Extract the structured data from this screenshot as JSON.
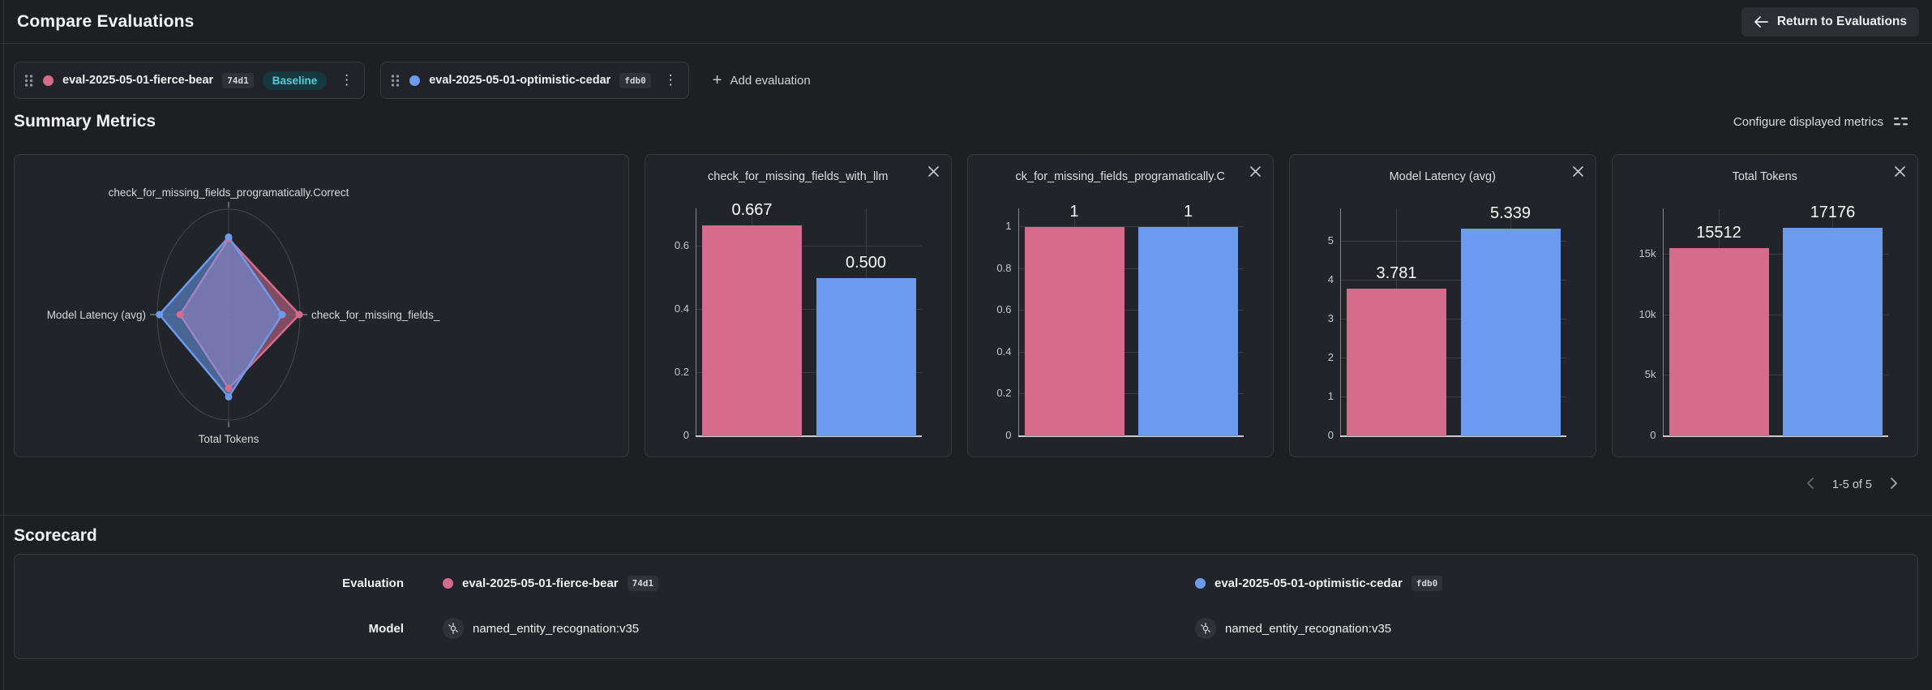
{
  "header": {
    "title": "Compare Evaluations",
    "return_label": "Return to Evaluations"
  },
  "evaluations": [
    {
      "name": "eval-2025-05-01-fierce-bear",
      "hash": "74d1",
      "color": "#d66b8e",
      "baseline_label": "Baseline"
    },
    {
      "name": "eval-2025-05-01-optimistic-cedar",
      "hash": "fdb0",
      "color": "#6c9bee"
    }
  ],
  "toolbar": {
    "add_evaluation_label": "Add evaluation"
  },
  "summary": {
    "heading": "Summary Metrics",
    "configure_label": "Configure displayed metrics",
    "pagination_label": "1-5 of 5"
  },
  "scorecard": {
    "heading": "Scorecard",
    "evaluation_row_label": "Evaluation",
    "model_row_label": "Model",
    "model_values": [
      "named_entity_recognation:v35",
      "named_entity_recognation:v35"
    ]
  },
  "chart_data": [
    {
      "type": "radar",
      "axes": [
        {
          "label": "check_for_missing_fields_programatically.Correct",
          "position": "top"
        },
        {
          "label": "check_for_missing_fields_",
          "position": "right"
        },
        {
          "label": "Total Tokens",
          "position": "bottom"
        },
        {
          "label": "Model Latency (avg)",
          "position": "left"
        }
      ],
      "series": [
        {
          "name": "eval-2025-05-01-fierce-bear",
          "color": "#d66b8e",
          "fractions": [
            0.72,
            0.99,
            0.7,
            0.68
          ]
        },
        {
          "name": "eval-2025-05-01-optimistic-cedar",
          "color": "#6c9bee",
          "fractions": [
            0.735,
            0.75,
            0.78,
            0.97
          ]
        }
      ]
    },
    {
      "type": "bar",
      "title": "check_for_missing_fields_with_llm",
      "ylim": [
        0,
        0.72
      ],
      "ticks": [
        {
          "label": "0",
          "value": 0
        },
        {
          "label": "0.2",
          "value": 0.2
        },
        {
          "label": "0.4",
          "value": 0.4
        },
        {
          "label": "0.6",
          "value": 0.6
        }
      ],
      "bars": [
        {
          "series": "eval-2025-05-01-fierce-bear",
          "value": 0.667,
          "label": "0.667",
          "color": "#d66b8e"
        },
        {
          "series": "eval-2025-05-01-optimistic-cedar",
          "value": 0.5,
          "label": "0.500",
          "color": "#6c9bee"
        }
      ]
    },
    {
      "type": "bar",
      "title": "ck_for_missing_fields_programatically.C",
      "ylim": [
        0,
        1.09
      ],
      "ticks": [
        {
          "label": "0",
          "value": 0
        },
        {
          "label": "0.2",
          "value": 0.2
        },
        {
          "label": "0.4",
          "value": 0.4
        },
        {
          "label": "0.6",
          "value": 0.6
        },
        {
          "label": "0.8",
          "value": 0.8
        },
        {
          "label": "1",
          "value": 1
        }
      ],
      "bars": [
        {
          "series": "eval-2025-05-01-fierce-bear",
          "value": 1,
          "label": "1",
          "color": "#d66b8e"
        },
        {
          "series": "eval-2025-05-01-optimistic-cedar",
          "value": 1,
          "label": "1",
          "color": "#6c9bee"
        }
      ]
    },
    {
      "type": "bar",
      "title": "Model Latency (avg)",
      "ylim": [
        0,
        5.85
      ],
      "ticks": [
        {
          "label": "0",
          "value": 0
        },
        {
          "label": "1",
          "value": 1
        },
        {
          "label": "2",
          "value": 2
        },
        {
          "label": "3",
          "value": 3
        },
        {
          "label": "4",
          "value": 4
        },
        {
          "label": "5",
          "value": 5
        }
      ],
      "bars": [
        {
          "series": "eval-2025-05-01-fierce-bear",
          "value": 3.781,
          "label": "3.781",
          "color": "#d66b8e"
        },
        {
          "series": "eval-2025-05-01-optimistic-cedar",
          "value": 5.339,
          "label": "5.339",
          "color": "#6c9bee"
        }
      ]
    },
    {
      "type": "bar",
      "title": "Total Tokens",
      "ylim": [
        0,
        18800
      ],
      "ticks": [
        {
          "label": "0",
          "value": 0
        },
        {
          "label": "5k",
          "value": 5000
        },
        {
          "label": "10k",
          "value": 10000
        },
        {
          "label": "15k",
          "value": 15000
        }
      ],
      "bars": [
        {
          "series": "eval-2025-05-01-fierce-bear",
          "value": 15512,
          "label": "15512",
          "color": "#d66b8e"
        },
        {
          "series": "eval-2025-05-01-optimistic-cedar",
          "value": 17176,
          "label": "17176",
          "color": "#6c9bee"
        }
      ]
    }
  ]
}
